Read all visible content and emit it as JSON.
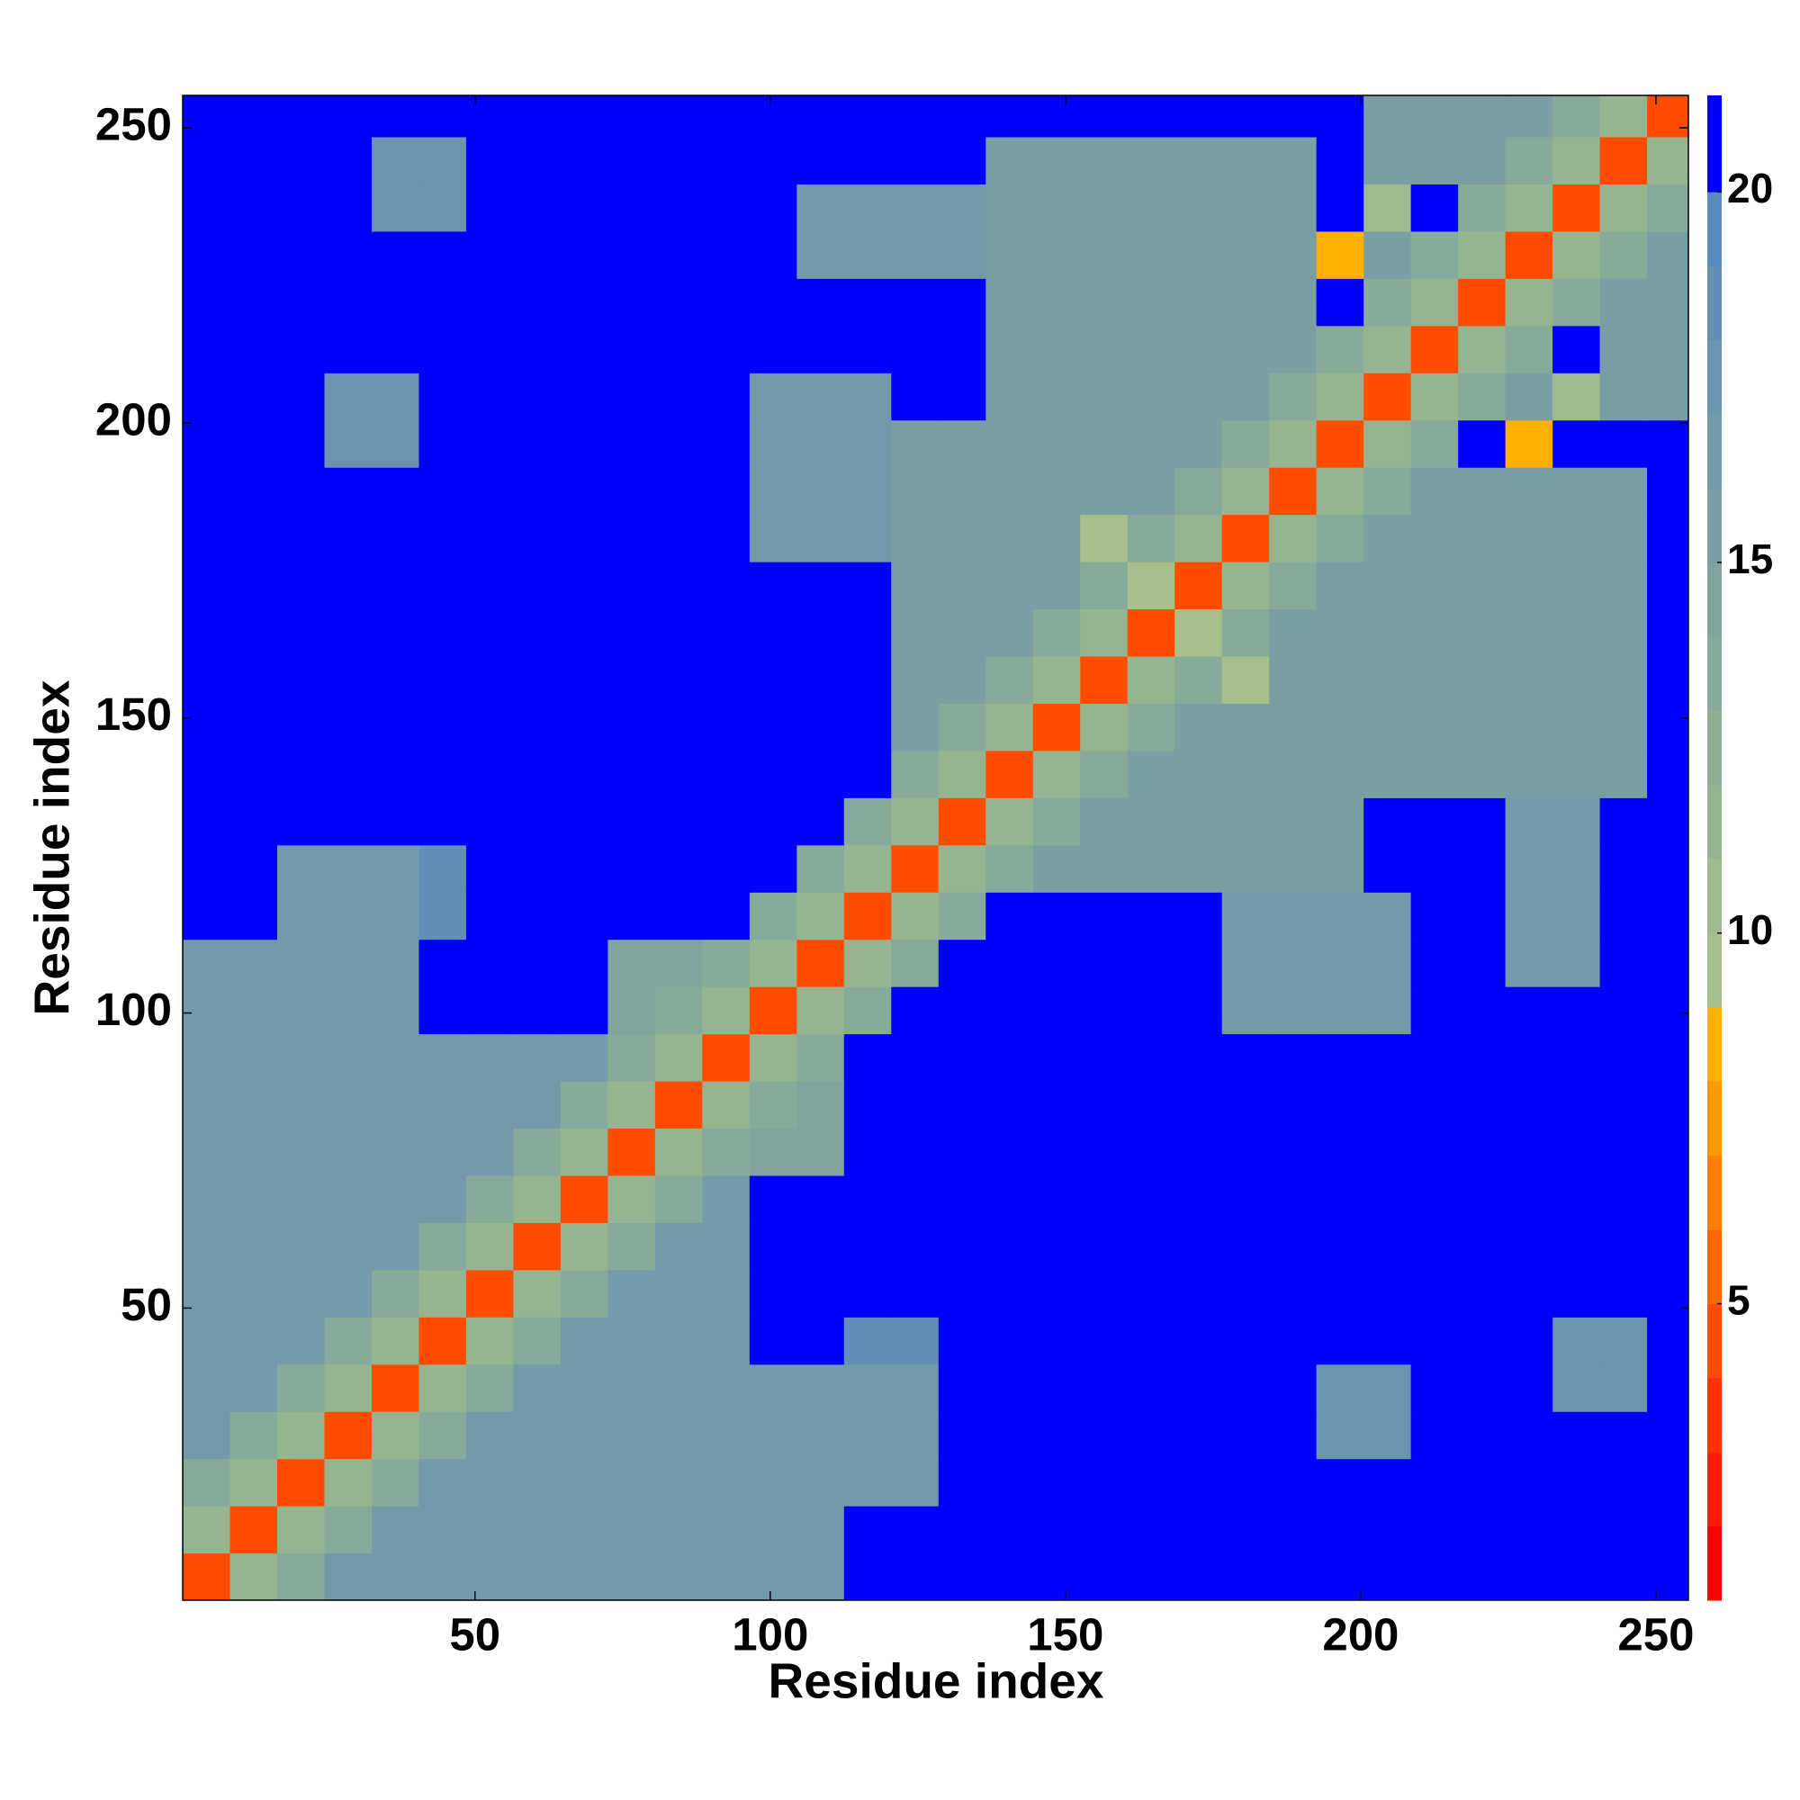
{
  "chart_data": {
    "type": "heatmap",
    "xlabel": "Residue index",
    "ylabel": "Residue index",
    "x": [
      4.5,
      12.5,
      20.5,
      28.5,
      36.5,
      44.5,
      52.5,
      60.5,
      68.5,
      76.5,
      84.5,
      92.5,
      100.5,
      108.5,
      116.5,
      124.5,
      132.5,
      140.5,
      148.5,
      156.5,
      164.5,
      172.5,
      180.5,
      188.5,
      196.5,
      204.5,
      212.5,
      220.5,
      228.5,
      236.5,
      244.5,
      252.5
    ],
    "y": [
      4.5,
      12.5,
      20.5,
      28.5,
      36.5,
      44.5,
      52.5,
      60.5,
      68.5,
      76.5,
      84.5,
      92.5,
      100.5,
      108.5,
      116.5,
      124.5,
      132.5,
      140.5,
      148.5,
      156.5,
      164.5,
      172.5,
      180.5,
      188.5,
      196.5,
      204.5,
      212.5,
      220.5,
      228.5,
      236.5,
      244.5,
      252.5
    ],
    "z": [
      [
        4,
        11,
        13,
        16,
        16,
        16,
        16,
        16,
        16,
        16,
        16,
        16,
        16,
        16,
        21,
        21,
        21,
        21,
        21,
        21,
        21,
        21,
        21,
        21,
        21,
        21,
        21,
        21,
        21,
        21,
        21,
        21
      ],
      [
        11,
        4,
        11,
        13,
        16,
        16,
        16,
        16,
        16,
        16,
        16,
        16,
        16,
        16,
        21,
        21,
        21,
        21,
        21,
        21,
        21,
        21,
        21,
        21,
        21,
        21,
        21,
        21,
        21,
        21,
        21,
        21
      ],
      [
        13,
        11,
        4,
        11,
        13,
        16,
        16,
        16,
        16,
        16,
        16,
        16,
        16,
        16,
        16,
        16,
        21,
        21,
        21,
        21,
        21,
        21,
        21,
        21,
        21,
        21,
        21,
        21,
        21,
        21,
        21,
        21
      ],
      [
        16,
        13,
        11,
        4,
        11,
        13,
        16,
        16,
        16,
        16,
        16,
        16,
        16,
        16,
        16,
        16,
        21,
        21,
        21,
        21,
        21,
        21,
        21,
        21,
        17,
        17,
        21,
        21,
        21,
        21,
        21,
        21
      ],
      [
        16,
        16,
        13,
        11,
        4,
        11,
        13,
        16,
        16,
        16,
        16,
        16,
        16,
        16,
        16,
        16,
        21,
        21,
        21,
        21,
        21,
        21,
        21,
        21,
        17,
        17,
        21,
        21,
        21,
        17,
        17,
        21
      ],
      [
        16,
        16,
        16,
        13,
        11,
        4,
        11,
        13,
        16,
        16,
        16,
        16,
        21,
        21,
        18,
        18,
        21,
        21,
        21,
        21,
        21,
        21,
        21,
        21,
        21,
        21,
        21,
        21,
        21,
        17,
        17,
        21
      ],
      [
        16,
        16,
        16,
        16,
        13,
        11,
        4,
        11,
        13,
        16,
        16,
        16,
        21,
        21,
        21,
        21,
        21,
        21,
        21,
        21,
        21,
        21,
        21,
        21,
        21,
        21,
        21,
        21,
        21,
        21,
        21,
        21
      ],
      [
        16,
        16,
        16,
        16,
        16,
        13,
        11,
        4,
        11,
        13,
        16,
        16,
        21,
        21,
        21,
        21,
        21,
        21,
        21,
        21,
        21,
        21,
        21,
        21,
        21,
        21,
        21,
        21,
        21,
        21,
        21,
        21
      ],
      [
        16,
        16,
        16,
        16,
        16,
        16,
        13,
        11,
        4,
        11,
        13,
        16,
        21,
        21,
        21,
        21,
        21,
        21,
        21,
        21,
        21,
        21,
        21,
        21,
        21,
        21,
        21,
        21,
        21,
        21,
        21,
        21
      ],
      [
        16,
        16,
        16,
        16,
        16,
        16,
        16,
        13,
        11,
        4,
        11,
        13,
        14,
        14,
        21,
        21,
        21,
        21,
        21,
        21,
        21,
        21,
        21,
        21,
        21,
        21,
        21,
        21,
        21,
        21,
        21,
        21
      ],
      [
        16,
        16,
        16,
        16,
        16,
        16,
        16,
        16,
        13,
        11,
        4,
        11,
        13,
        14,
        21,
        21,
        21,
        21,
        21,
        21,
        21,
        21,
        21,
        21,
        21,
        21,
        21,
        21,
        21,
        21,
        21,
        21
      ],
      [
        16,
        16,
        16,
        16,
        16,
        16,
        16,
        16,
        16,
        13,
        11,
        4,
        11,
        13,
        21,
        21,
        21,
        21,
        21,
        21,
        21,
        21,
        21,
        21,
        21,
        21,
        21,
        21,
        21,
        21,
        21,
        21
      ],
      [
        16,
        16,
        16,
        16,
        16,
        21,
        21,
        21,
        21,
        14,
        13,
        11,
        4,
        11,
        13,
        21,
        21,
        21,
        21,
        21,
        21,
        21,
        16,
        16,
        16,
        16,
        21,
        21,
        21,
        21,
        21,
        21
      ],
      [
        16,
        16,
        16,
        16,
        16,
        21,
        21,
        21,
        21,
        14,
        14,
        13,
        11,
        4,
        11,
        13,
        21,
        21,
        21,
        21,
        21,
        21,
        16,
        16,
        16,
        16,
        21,
        21,
        16,
        16,
        21,
        21
      ],
      [
        21,
        21,
        16,
        16,
        16,
        18,
        21,
        21,
        21,
        21,
        21,
        21,
        13,
        11,
        4,
        11,
        13,
        21,
        21,
        21,
        21,
        21,
        16,
        16,
        16,
        16,
        21,
        21,
        16,
        16,
        21,
        21
      ],
      [
        21,
        21,
        16,
        16,
        16,
        18,
        21,
        21,
        21,
        21,
        21,
        21,
        21,
        13,
        11,
        4,
        11,
        13,
        15,
        15,
        15,
        15,
        15,
        15,
        15,
        21,
        21,
        21,
        16,
        16,
        21,
        21
      ],
      [
        21,
        21,
        21,
        21,
        21,
        21,
        21,
        21,
        21,
        21,
        21,
        21,
        21,
        21,
        13,
        11,
        4,
        11,
        13,
        15,
        15,
        15,
        15,
        15,
        15,
        21,
        21,
        21,
        16,
        16,
        21,
        21
      ],
      [
        21,
        21,
        21,
        21,
        21,
        21,
        21,
        21,
        21,
        21,
        21,
        21,
        21,
        21,
        21,
        13,
        11,
        4,
        11,
        13,
        15,
        15,
        15,
        15,
        15,
        15,
        15,
        15,
        15,
        15,
        15,
        21
      ],
      [
        21,
        21,
        21,
        21,
        21,
        21,
        21,
        21,
        21,
        21,
        21,
        21,
        21,
        21,
        21,
        15,
        13,
        11,
        4,
        11,
        13,
        15,
        15,
        15,
        15,
        15,
        15,
        15,
        15,
        15,
        15,
        21
      ],
      [
        21,
        21,
        21,
        21,
        21,
        21,
        21,
        21,
        21,
        21,
        21,
        21,
        21,
        21,
        21,
        15,
        15,
        13,
        11,
        4,
        11,
        13,
        9,
        15,
        15,
        15,
        15,
        15,
        15,
        15,
        15,
        21
      ],
      [
        21,
        21,
        21,
        21,
        21,
        21,
        21,
        21,
        21,
        21,
        21,
        21,
        21,
        21,
        21,
        15,
        15,
        15,
        13,
        11,
        4,
        9,
        13,
        15,
        15,
        15,
        15,
        15,
        15,
        15,
        15,
        21
      ],
      [
        21,
        21,
        21,
        21,
        21,
        21,
        21,
        21,
        21,
        21,
        21,
        21,
        21,
        21,
        21,
        15,
        15,
        15,
        15,
        13,
        9,
        4,
        11,
        13,
        15,
        15,
        15,
        15,
        15,
        15,
        15,
        21
      ],
      [
        21,
        21,
        21,
        21,
        21,
        21,
        21,
        21,
        21,
        21,
        21,
        21,
        16,
        16,
        16,
        15,
        15,
        15,
        15,
        9,
        13,
        11,
        4,
        11,
        13,
        15,
        15,
        15,
        15,
        15,
        15,
        21
      ],
      [
        21,
        21,
        21,
        21,
        21,
        21,
        21,
        21,
        21,
        21,
        21,
        21,
        16,
        16,
        16,
        15,
        15,
        15,
        15,
        15,
        15,
        13,
        11,
        4,
        11,
        13,
        15,
        15,
        15,
        15,
        15,
        21
      ],
      [
        21,
        21,
        21,
        17,
        17,
        21,
        21,
        21,
        21,
        21,
        21,
        21,
        16,
        16,
        16,
        15,
        15,
        15,
        15,
        15,
        15,
        15,
        13,
        11,
        4,
        11,
        13,
        21,
        8,
        21,
        21,
        21
      ],
      [
        21,
        21,
        21,
        17,
        17,
        21,
        21,
        21,
        21,
        21,
        21,
        21,
        16,
        16,
        16,
        21,
        21,
        15,
        15,
        15,
        15,
        15,
        15,
        13,
        11,
        4,
        11,
        13,
        15,
        10,
        15,
        15
      ],
      [
        21,
        21,
        21,
        21,
        21,
        21,
        21,
        21,
        21,
        21,
        21,
        21,
        21,
        21,
        21,
        21,
        21,
        15,
        15,
        15,
        15,
        15,
        15,
        15,
        13,
        11,
        4,
        11,
        13,
        21,
        15,
        15
      ],
      [
        21,
        21,
        21,
        21,
        21,
        21,
        21,
        21,
        21,
        21,
        21,
        21,
        21,
        21,
        21,
        21,
        21,
        15,
        15,
        15,
        15,
        15,
        15,
        15,
        21,
        13,
        11,
        4,
        11,
        13,
        15,
        15
      ],
      [
        21,
        21,
        21,
        21,
        21,
        21,
        21,
        21,
        21,
        21,
        21,
        21,
        21,
        16,
        16,
        16,
        16,
        15,
        15,
        15,
        15,
        15,
        15,
        15,
        8,
        15,
        13,
        11,
        4,
        11,
        13,
        15
      ],
      [
        21,
        21,
        21,
        21,
        17,
        17,
        21,
        21,
        21,
        21,
        21,
        21,
        21,
        16,
        16,
        16,
        16,
        15,
        15,
        15,
        15,
        15,
        15,
        15,
        21,
        10,
        21,
        13,
        11,
        4,
        11,
        13
      ],
      [
        21,
        21,
        21,
        21,
        17,
        17,
        21,
        21,
        21,
        21,
        21,
        21,
        21,
        21,
        21,
        21,
        21,
        15,
        15,
        15,
        15,
        15,
        15,
        15,
        21,
        15,
        15,
        15,
        13,
        11,
        4,
        11
      ],
      [
        21,
        21,
        21,
        21,
        21,
        21,
        21,
        21,
        21,
        21,
        21,
        21,
        21,
        21,
        21,
        21,
        21,
        21,
        21,
        21,
        21,
        21,
        21,
        21,
        21,
        15,
        15,
        15,
        15,
        13,
        11,
        4
      ]
    ],
    "xlim": [
      0.5,
      255.5
    ],
    "ylim": [
      0.5,
      255.5
    ],
    "xticks": [
      50,
      100,
      150,
      200,
      250
    ],
    "yticks": [
      50,
      100,
      150,
      200,
      250
    ],
    "colorbar": {
      "clim": [
        1,
        21.3
      ],
      "levels": [
        1,
        2,
        3,
        4,
        5,
        6,
        7,
        8,
        9,
        10,
        11,
        12,
        13,
        14,
        15,
        16,
        17,
        18,
        19,
        20,
        21.3
      ],
      "colors": [
        "#ff0000",
        "#ff1a00",
        "#ff3300",
        "#ff4d00",
        "#ff6600",
        "#ff8000",
        "#ff9900",
        "#ffb000",
        "#a7bf8a",
        "#9fba8d",
        "#97b491",
        "#8faf95",
        "#88aa9a",
        "#80a59f",
        "#799fa5",
        "#729aab",
        "#6a95b1",
        "#638fb7",
        "#5b8abd",
        "#0000ff"
      ],
      "ticks": [
        5,
        10,
        15,
        20
      ]
    }
  }
}
